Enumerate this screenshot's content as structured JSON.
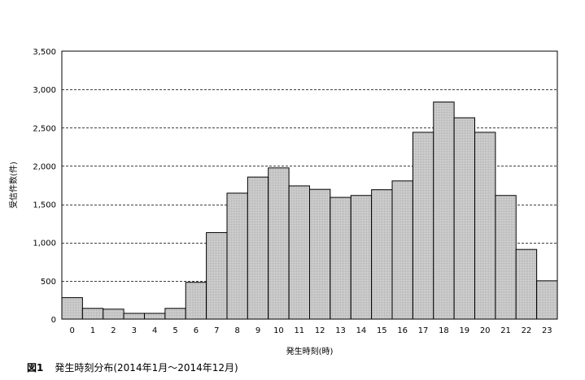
{
  "figure": {
    "number": "図1",
    "caption": "発生時刻分布(2014年1月～2014年12月)"
  },
  "chart_data": {
    "type": "bar",
    "xlabel": "発生時刻(時)",
    "ylabel": "受信件数(件)",
    "ylim": [
      0,
      3500
    ],
    "yticks": [
      0,
      500,
      1000,
      1500,
      2000,
      2500,
      3000,
      3500
    ],
    "ytick_labels": [
      "0",
      "500",
      "1,000",
      "1,500",
      "2,000",
      "2,500",
      "3,000",
      "3,500"
    ],
    "grid": "horizontal-dashed",
    "categories": [
      "0",
      "1",
      "2",
      "3",
      "4",
      "5",
      "6",
      "7",
      "8",
      "9",
      "10",
      "11",
      "12",
      "13",
      "14",
      "15",
      "16",
      "17",
      "18",
      "19",
      "20",
      "21",
      "22",
      "23"
    ],
    "values": [
      280,
      140,
      130,
      75,
      75,
      140,
      480,
      1130,
      1645,
      1855,
      1975,
      1740,
      1695,
      1590,
      1615,
      1690,
      1805,
      2440,
      2835,
      2630,
      2440,
      1615,
      910,
      500
    ],
    "colors": {
      "bar_fill": "#c0c0c0",
      "bar_stroke": "#000000",
      "grid": "#000000"
    }
  }
}
